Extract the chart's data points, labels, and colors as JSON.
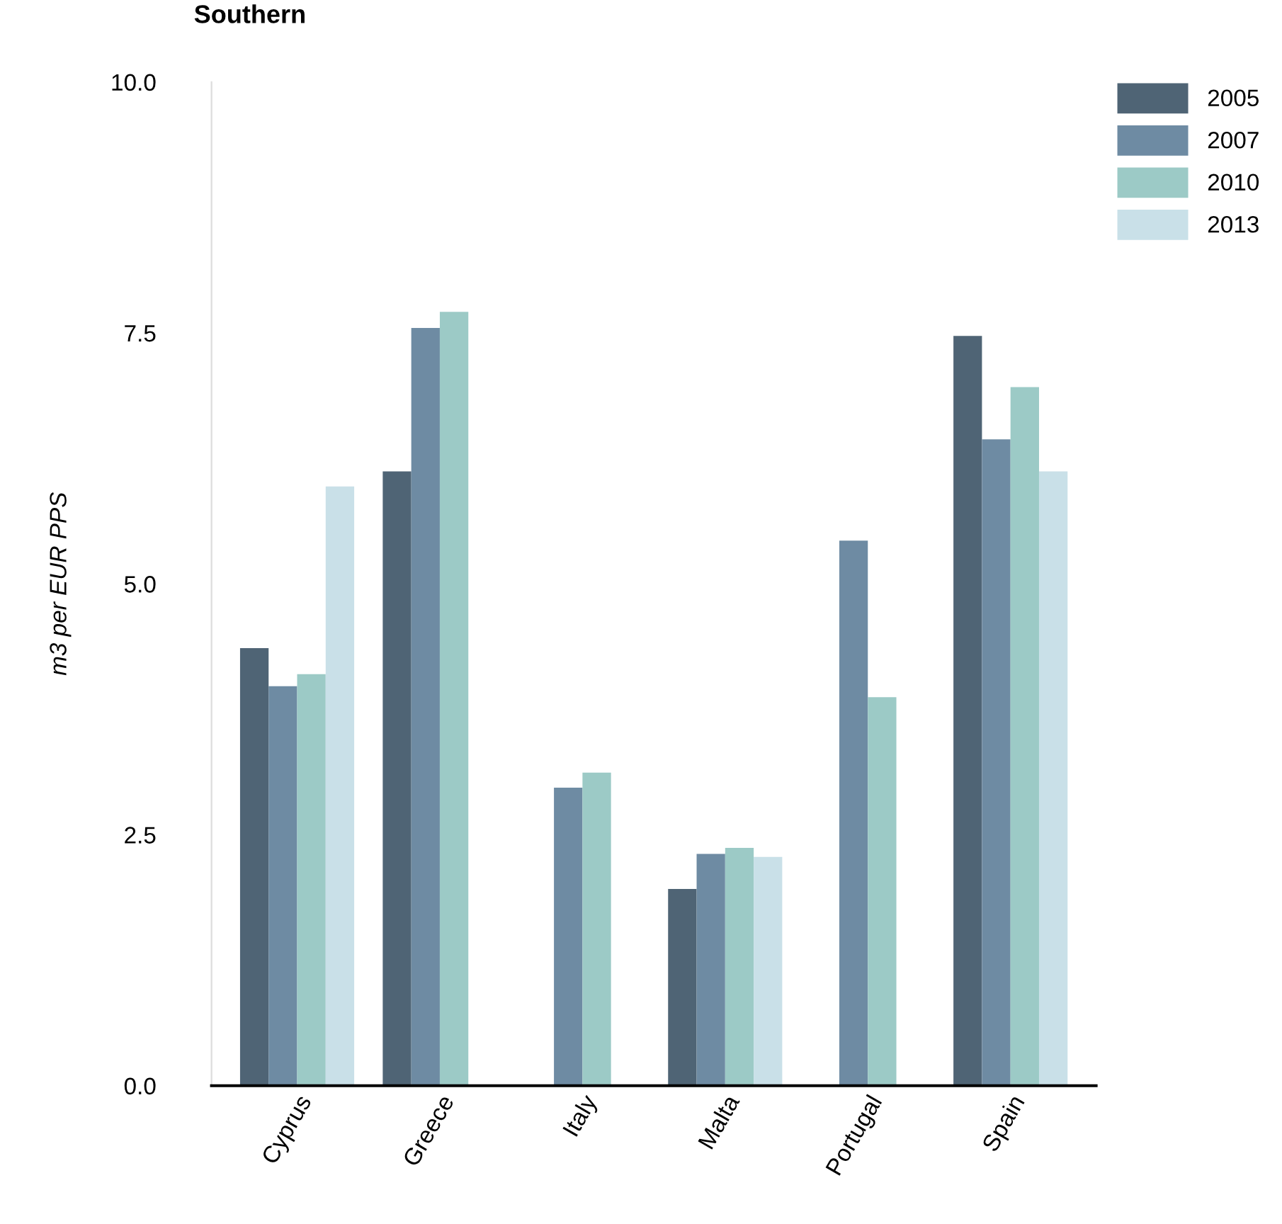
{
  "chart_data": {
    "type": "bar",
    "title": "Southern",
    "ylabel": "m3 per EUR PPS",
    "categories": [
      "Cyprus",
      "Greece",
      "Italy",
      "Malta",
      "Portugal",
      "Spain"
    ],
    "series": [
      {
        "name": "2005",
        "color": "#4f6475",
        "values": [
          4.36,
          6.12,
          null,
          1.96,
          null,
          7.47
        ]
      },
      {
        "name": "2007",
        "color": "#6e8ba3",
        "values": [
          3.98,
          7.55,
          2.97,
          2.31,
          5.43,
          6.44
        ]
      },
      {
        "name": "2010",
        "color": "#9ccac6",
        "values": [
          4.1,
          7.71,
          3.12,
          2.37,
          3.87,
          6.96
        ]
      },
      {
        "name": "2013",
        "color": "#c9e0e8",
        "values": [
          5.97,
          null,
          null,
          2.28,
          null,
          6.12
        ]
      }
    ],
    "ylim": [
      0,
      10
    ],
    "yticks": [
      {
        "value": 0,
        "label": "0.0"
      },
      {
        "value": 2.5,
        "label": "2.5"
      },
      {
        "value": 5,
        "label": "5.0"
      },
      {
        "value": 7.5,
        "label": "7.5"
      },
      {
        "value": 10,
        "label": "10.0"
      }
    ],
    "grid": false,
    "legend": "top right"
  }
}
